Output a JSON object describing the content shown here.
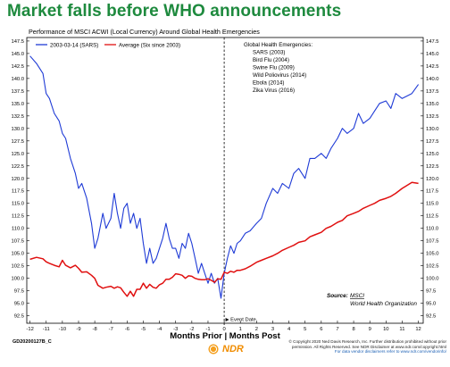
{
  "headline": "Market falls before WHO announcements",
  "footer": {
    "chart_id": "GD20200127B_C",
    "logo_text": "NDR",
    "copyright_1": "© Copyright 2020 Ned Davis Research, Inc. Further distribution prohibited without prior",
    "copyright_2": "permission. All Rights Reserved. See NDR Disclaimer at www.ndr.com/copyright.html",
    "copyright_3": "For data vendor disclaimers refer to www.ndr.com/vendorinfo/"
  },
  "colors": {
    "headline": "#1e8a3e",
    "series_sars": "#1f3bd6",
    "series_avg": "#e01010"
  },
  "chart_data": {
    "type": "line",
    "title": "Performance of MSCI ACWI (Local Currency) Around Global Health Emergencies",
    "xlabel": "Months Prior | Months Post",
    "ylabel": "",
    "xlim": [
      -12.2,
      12.3
    ],
    "ylim": [
      91.0,
      148.2
    ],
    "x_ticks": [
      "-12",
      "-11",
      "-10",
      "-9",
      "-8",
      "-7",
      "-6",
      "-5",
      "-4",
      "-3",
      "-2",
      "-1",
      "0",
      "1",
      "2",
      "3",
      "4",
      "5",
      "6",
      "7",
      "8",
      "9",
      "10",
      "11",
      "12"
    ],
    "y_ticks": [
      92.5,
      95.0,
      97.5,
      100.0,
      102.5,
      105.0,
      107.5,
      110.0,
      112.5,
      115.0,
      117.5,
      120.0,
      122.5,
      125.0,
      127.5,
      130.0,
      132.5,
      135.0,
      137.5,
      140.0,
      142.5,
      145.0,
      147.5
    ],
    "y_tick_labels": [
      "92.5",
      "95.0",
      "97.5",
      "100.0",
      "102.5",
      "105.0",
      "107.5",
      "110.0",
      "112.5",
      "115.0",
      "117.5",
      "120.0",
      "122.5",
      "125.0",
      "127.5",
      "130.0",
      "132.5",
      "135.0",
      "137.5",
      "140.0",
      "142.5",
      "145.0",
      "147.5"
    ],
    "grid": false,
    "legend_position": "top-left",
    "event_line": {
      "x": 0,
      "label": "Event Date"
    },
    "annotation": {
      "heading": "Global Health Emergencies:",
      "items": [
        "SARS (2003)",
        "Bird Flu (2004)",
        "Swine Flu (2009)",
        "Wild Poliovirus (2014)",
        "Ebola (2014)",
        "Zika Virus (2016)"
      ]
    },
    "source": {
      "label": "Source:",
      "line1": "MSCI",
      "line2": "World Health Organization"
    },
    "series": [
      {
        "name": "2003-03-14 (SARS)",
        "x": [
          -12,
          -11.6,
          -11.2,
          -11,
          -10.8,
          -10.5,
          -10.2,
          -10,
          -9.8,
          -9.5,
          -9.2,
          -9,
          -8.8,
          -8.5,
          -8.2,
          -8,
          -7.8,
          -7.5,
          -7.3,
          -7,
          -6.8,
          -6.6,
          -6.4,
          -6.2,
          -6,
          -5.8,
          -5.6,
          -5.4,
          -5.2,
          -5,
          -4.8,
          -4.6,
          -4.4,
          -4.2,
          -4,
          -3.8,
          -3.6,
          -3.4,
          -3.2,
          -3,
          -2.8,
          -2.6,
          -2.4,
          -2.2,
          -2,
          -1.8,
          -1.6,
          -1.4,
          -1.2,
          -1,
          -0.8,
          -0.6,
          -0.4,
          -0.2,
          0,
          0.2,
          0.4,
          0.6,
          0.8,
          1,
          1.3,
          1.6,
          2,
          2.3,
          2.6,
          3,
          3.3,
          3.6,
          4,
          4.3,
          4.6,
          5,
          5.3,
          5.6,
          6,
          6.3,
          6.6,
          7,
          7.3,
          7.6,
          8,
          8.3,
          8.6,
          9,
          9.3,
          9.6,
          10,
          10.3,
          10.6,
          11,
          11.3,
          11.6,
          12
        ],
        "y": [
          144.5,
          143.0,
          141.0,
          137.0,
          136.0,
          133.0,
          131.5,
          129.0,
          128.0,
          124.0,
          121.0,
          118.0,
          119.0,
          116.0,
          111.0,
          106.0,
          108.0,
          113.0,
          110.0,
          112.0,
          117.0,
          113.0,
          110.0,
          114.0,
          115.0,
          111.0,
          113.0,
          110.0,
          112.0,
          107.0,
          103.0,
          106.0,
          103.0,
          104.0,
          106.0,
          108.0,
          111.0,
          108.0,
          106.0,
          106.0,
          104.0,
          107.0,
          106.0,
          109.0,
          107.0,
          104.0,
          101.0,
          103.0,
          101.0,
          99.0,
          101.0,
          99.0,
          100.0,
          96.0,
          101.0,
          104.0,
          106.5,
          105.0,
          107.0,
          107.5,
          109.0,
          109.5,
          111.0,
          112.0,
          115.0,
          118.0,
          117.0,
          119.0,
          118.0,
          121.0,
          122.0,
          120.0,
          124.0,
          124.0,
          125.0,
          124.0,
          126.0,
          128.0,
          130.0,
          129.0,
          130.0,
          133.0,
          131.0,
          132.0,
          133.5,
          135.0,
          135.5,
          134.0,
          137.0,
          136.0,
          136.5,
          137.0,
          138.8
        ]
      },
      {
        "name": "Average (Six since 2003)",
        "x": [
          -12,
          -11.6,
          -11.2,
          -11,
          -10.8,
          -10.5,
          -10.2,
          -10,
          -9.8,
          -9.5,
          -9.2,
          -9,
          -8.8,
          -8.5,
          -8.2,
          -8,
          -7.8,
          -7.5,
          -7.3,
          -7,
          -6.8,
          -6.6,
          -6.4,
          -6.2,
          -6,
          -5.8,
          -5.6,
          -5.4,
          -5.2,
          -5,
          -4.8,
          -4.6,
          -4.4,
          -4.2,
          -4,
          -3.8,
          -3.6,
          -3.4,
          -3.2,
          -3,
          -2.8,
          -2.6,
          -2.4,
          -2.2,
          -2,
          -1.8,
          -1.6,
          -1.4,
          -1.2,
          -1,
          -0.8,
          -0.6,
          -0.4,
          -0.2,
          0,
          0.2,
          0.4,
          0.6,
          0.8,
          1,
          1.3,
          1.6,
          2,
          2.3,
          2.6,
          3,
          3.3,
          3.6,
          4,
          4.3,
          4.6,
          5,
          5.3,
          5.6,
          6,
          6.3,
          6.6,
          7,
          7.3,
          7.6,
          8,
          8.3,
          8.6,
          9,
          9.3,
          9.6,
          10,
          10.3,
          10.6,
          11,
          11.3,
          11.6,
          12
        ],
        "y": [
          103.8,
          104.2,
          103.9,
          103.3,
          103.0,
          102.6,
          102.3,
          103.6,
          102.6,
          102.1,
          102.6,
          102.0,
          101.2,
          101.3,
          100.6,
          100.0,
          98.6,
          98.0,
          98.2,
          98.4,
          98.0,
          98.3,
          98.1,
          97.2,
          96.4,
          97.4,
          96.4,
          97.8,
          97.8,
          99.0,
          98.0,
          98.8,
          98.2,
          98.0,
          98.7,
          99.0,
          99.8,
          99.8,
          100.2,
          100.9,
          100.8,
          100.6,
          100.0,
          100.5,
          100.4,
          100.0,
          99.8,
          99.7,
          99.7,
          99.9,
          99.6,
          99.2,
          99.9,
          99.8,
          101.2,
          101.0,
          101.4,
          101.2,
          101.6,
          101.6,
          101.9,
          102.4,
          103.2,
          103.6,
          104.0,
          104.5,
          105.0,
          105.6,
          106.2,
          106.6,
          107.2,
          107.5,
          108.3,
          108.7,
          109.2,
          110.0,
          110.4,
          111.2,
          111.6,
          112.5,
          113.0,
          113.4,
          114.0,
          114.6,
          115.0,
          115.6,
          116.0,
          116.4,
          117.0,
          118.0,
          118.6,
          119.2,
          119.0
        ]
      }
    ]
  }
}
